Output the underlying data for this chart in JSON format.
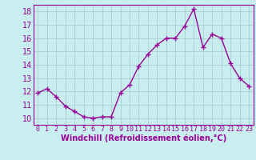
{
  "x": [
    0,
    1,
    2,
    3,
    4,
    5,
    6,
    7,
    8,
    9,
    10,
    11,
    12,
    13,
    14,
    15,
    16,
    17,
    18,
    19,
    20,
    21,
    22,
    23
  ],
  "y": [
    11.9,
    12.2,
    11.6,
    10.9,
    10.5,
    10.1,
    10.0,
    10.1,
    10.1,
    11.9,
    12.5,
    13.9,
    14.8,
    15.5,
    16.0,
    16.0,
    16.9,
    18.2,
    15.3,
    16.3,
    16.0,
    14.1,
    13.0,
    12.4
  ],
  "line_color": "#990099",
  "marker": "+",
  "marker_size": 4,
  "linewidth": 1.0,
  "markeredgewidth": 1.0,
  "xlabel": "Windchill (Refroidissement éolien,°C)",
  "xlim": [
    -0.5,
    23.5
  ],
  "ylim": [
    9.5,
    18.5
  ],
  "yticks": [
    10,
    11,
    12,
    13,
    14,
    15,
    16,
    17,
    18
  ],
  "xticks": [
    0,
    1,
    2,
    3,
    4,
    5,
    6,
    7,
    8,
    9,
    10,
    11,
    12,
    13,
    14,
    15,
    16,
    17,
    18,
    19,
    20,
    21,
    22,
    23
  ],
  "background_color": "#c8eef0",
  "grid_color": "#aad4d8",
  "label_color": "#990099",
  "xlabel_fontsize": 7,
  "tick_fontsize": 6,
  "ytick_fontsize": 7
}
